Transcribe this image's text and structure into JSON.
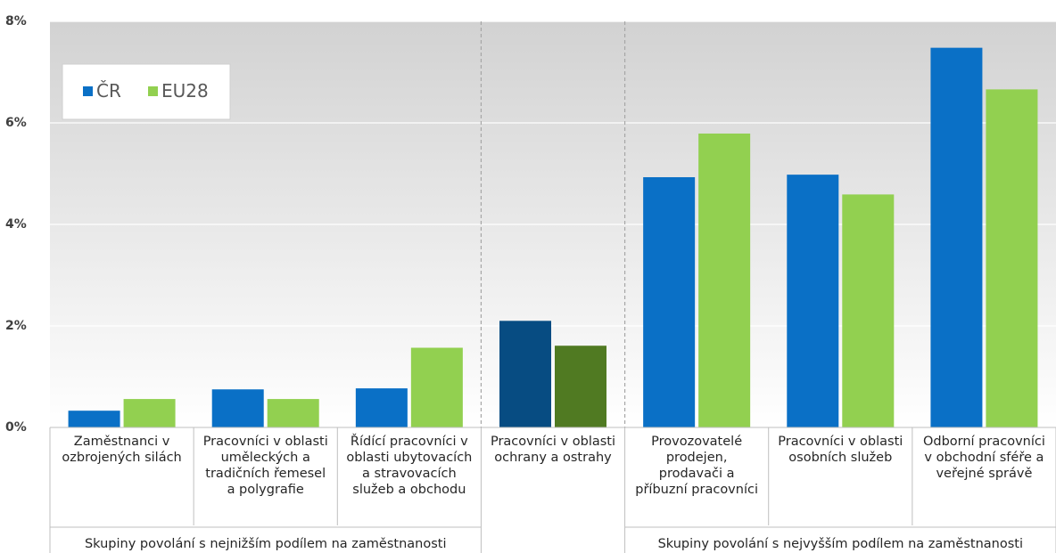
{
  "chart_data": {
    "type": "bar",
    "y_ticks": [
      "0%",
      "2%",
      "4%",
      "6%",
      "8%"
    ],
    "ylim": [
      0,
      8
    ],
    "grid": true,
    "legend_position": "top-left",
    "categories": [
      [
        "Zaměstnanci v",
        "ozbrojených silách"
      ],
      [
        "Pracovníci v oblasti",
        "uměleckých a",
        "tradičních řemesel",
        "a polygrafie"
      ],
      [
        "Řídící pracovníci v",
        "oblasti ubytovacích",
        "a stravovacích",
        "služeb a obchodu"
      ],
      [
        "Pracovníci v oblasti",
        "ochrany a ostrahy"
      ],
      [
        "Provozovatelé",
        "prodejen,",
        "prodavači a",
        "příbuzní pracovníci"
      ],
      [
        "Pracovníci v oblasti",
        "osobních služeb"
      ],
      [
        "Odborní pracovníci",
        "v obchodní sféře a",
        "veřejné správě"
      ]
    ],
    "groups": [
      {
        "label": "Skupiny povolání s nejnižším podílem na zaměstnanosti",
        "from": 0,
        "to": 2
      },
      {
        "label": "",
        "from": 3,
        "to": 3
      },
      {
        "label": "Skupiny povolání s nejvyšším podílem na zaměstnanosti",
        "from": 4,
        "to": 6
      }
    ],
    "series": [
      {
        "name": "ČR",
        "color": "#0A70C6",
        "highlight_color": "#074C82",
        "values": [
          0.33,
          0.75,
          0.77,
          2.1,
          4.93,
          4.98,
          7.48
        ]
      },
      {
        "name": "EU28",
        "color": "#92D050",
        "highlight_color": "#507A22",
        "values": [
          0.56,
          0.56,
          1.57,
          1.61,
          5.79,
          4.59,
          6.66
        ]
      }
    ],
    "highlight_index": 3
  }
}
